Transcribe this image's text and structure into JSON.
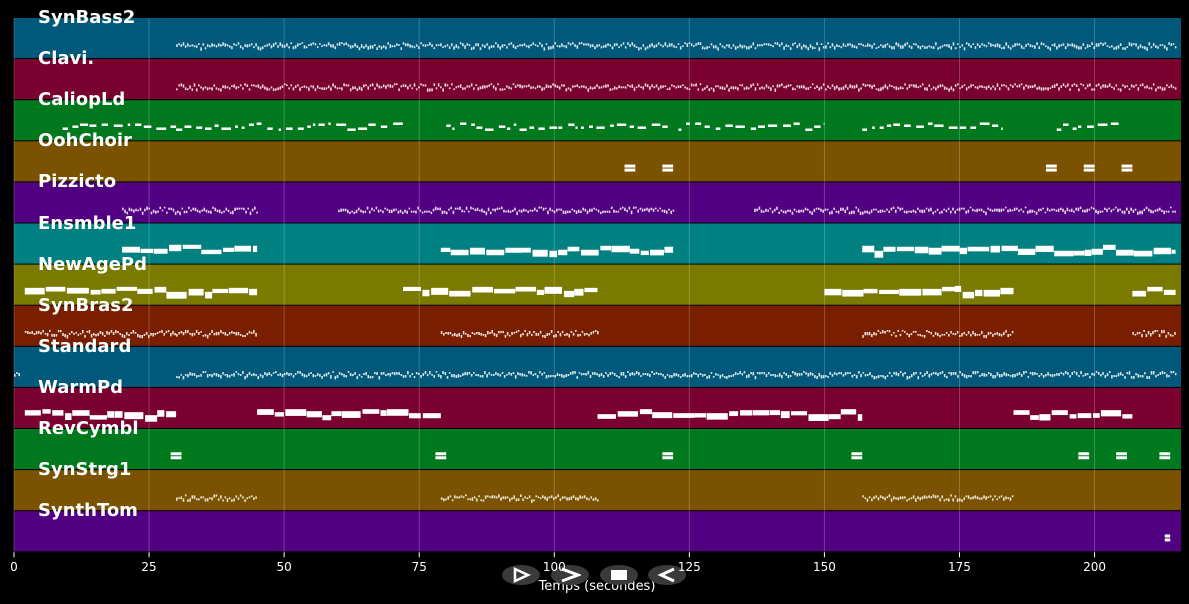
{
  "chart_data": {
    "type": "piano-roll",
    "xlabel": "Temps (secondes)",
    "xlim": [
      0,
      216
    ],
    "x_ticks": [
      0,
      25,
      50,
      75,
      100,
      125,
      150,
      175,
      200
    ],
    "tracks": [
      {
        "name": "SynBass2",
        "color": "#00587a",
        "style": "dense",
        "segments": [
          [
            30,
            215
          ]
        ]
      },
      {
        "name": "Clavi.",
        "color": "#7a0030",
        "style": "dense",
        "segments": [
          [
            30,
            215
          ]
        ]
      },
      {
        "name": "CaliopLd",
        "color": "#00781e",
        "style": "sparse",
        "segments": [
          [
            9,
            30
          ],
          [
            30,
            73
          ],
          [
            80,
            121
          ],
          [
            123,
            150
          ],
          [
            157,
            183
          ],
          [
            193,
            205
          ]
        ]
      },
      {
        "name": "OohChoir",
        "color": "#7a5200",
        "style": "blocks",
        "segments": [
          [
            113,
            115
          ],
          [
            120,
            122
          ],
          [
            191,
            193
          ],
          [
            198,
            200
          ],
          [
            205,
            207
          ]
        ]
      },
      {
        "name": "Pizzicto",
        "color": "#520082",
        "style": "dense",
        "segments": [
          [
            20,
            45
          ],
          [
            60,
            122
          ],
          [
            137,
            215
          ]
        ]
      },
      {
        "name": "Ensmble1",
        "color": "#008080",
        "style": "thick",
        "segments": [
          [
            20,
            45
          ],
          [
            79,
            122
          ],
          [
            157,
            215
          ]
        ]
      },
      {
        "name": "NewAgePd",
        "color": "#7a7a00",
        "style": "thick",
        "segments": [
          [
            2,
            45
          ],
          [
            72,
            108
          ],
          [
            150,
            185
          ],
          [
            207,
            215
          ]
        ]
      },
      {
        "name": "SynBras2",
        "color": "#7a1e00",
        "style": "dense",
        "segments": [
          [
            2,
            30
          ],
          [
            30,
            45
          ],
          [
            79,
            108
          ],
          [
            157,
            185
          ],
          [
            207,
            215
          ]
        ]
      },
      {
        "name": "Standard",
        "color": "#00587a",
        "style": "dense",
        "segments": [
          [
            0,
            1
          ],
          [
            30,
            215
          ]
        ]
      },
      {
        "name": "WarmPd",
        "color": "#7a0030",
        "style": "thick",
        "segments": [
          [
            2,
            30
          ],
          [
            45,
            79
          ],
          [
            108,
            157
          ],
          [
            185,
            207
          ]
        ]
      },
      {
        "name": "RevCymbl",
        "color": "#00781e",
        "style": "blocks",
        "segments": [
          [
            29,
            31
          ],
          [
            78,
            80
          ],
          [
            120,
            122
          ],
          [
            155,
            157
          ],
          [
            197,
            199
          ],
          [
            204,
            206
          ],
          [
            212,
            214
          ]
        ]
      },
      {
        "name": "SynStrg1",
        "color": "#7a5200",
        "style": "dense",
        "segments": [
          [
            30,
            45
          ],
          [
            79,
            108
          ],
          [
            157,
            185
          ]
        ]
      },
      {
        "name": "SynthTom",
        "color": "#520082",
        "style": "blocks",
        "segments": [
          [
            213,
            214
          ]
        ]
      }
    ]
  },
  "controls": {
    "play_icon": "play-icon",
    "fast_forward_icon": "fast-forward-icon",
    "stop_icon": "stop-icon",
    "rewind_icon": "rewind-icon"
  }
}
